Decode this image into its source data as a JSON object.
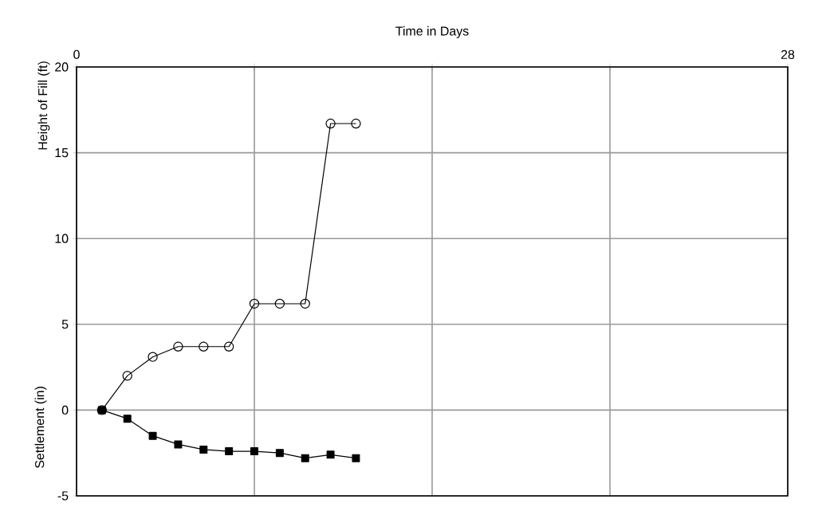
{
  "chart_data": {
    "type": "line",
    "xlabel": "Time in Days",
    "ylabel": "Height of Fill (ft)",
    "annotations": [
      "Settlement (in)"
    ],
    "x": [
      1,
      2,
      3,
      4,
      5,
      6,
      7,
      8,
      9,
      10,
      11
    ],
    "series": [
      {
        "color": "#000000",
        "marker": "circle",
        "values": [
          0,
          2,
          3.1,
          3.7,
          3.7,
          3.7,
          6.2,
          6.2,
          6.2,
          16.7,
          16.7
        ]
      },
      {
        "color": "#000000",
        "marker": "square",
        "values": [
          0,
          -0.5,
          -1.5,
          -2,
          -2.3,
          -2.4,
          -2.4,
          -2.5,
          -2.8,
          -2.6,
          -2.8
        ]
      }
    ],
    "xlim": [
      0,
      28
    ],
    "ylim": [
      -5,
      20
    ],
    "xticks": [
      0,
      {
        "value": 7,
        "label": null
      },
      {
        "value": 14,
        "label": null
      },
      {
        "value": 21,
        "label": null
      },
      28
    ],
    "yticks": [
      -5,
      0,
      5,
      10,
      15,
      20
    ],
    "grid": true,
    "line_style": "solid"
  }
}
